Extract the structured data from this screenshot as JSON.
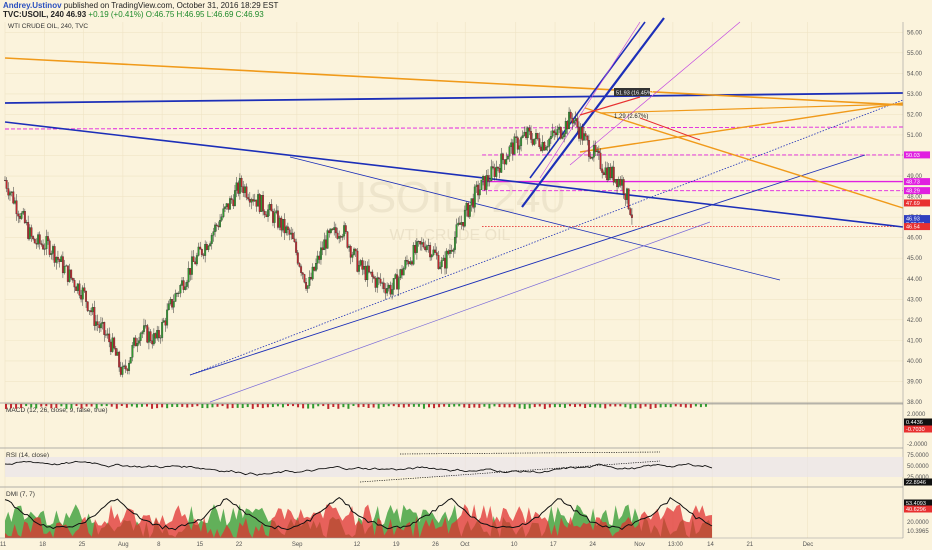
{
  "header": {
    "author": "Andrey.Ustinov",
    "published": "published on TradingView.com, October 31, 2016 18:29 EST",
    "symbol": "TVC:USOIL, 240",
    "last": "46.93",
    "change": "+0.19 (+0.41%)",
    "ohlc": "O:46.75 H:46.95 L:46.69 C:46.93"
  },
  "chart_data": {
    "type": "candlestick",
    "title": "WTI CRUDE OIL, 240, TVC",
    "watermark": {
      "symbol": "USOIL, 240",
      "name": "WTI CRUDE OIL"
    },
    "price_axis": {
      "range": [
        38.0,
        56.5
      ],
      "ticks": [
        "56.00",
        "55.00",
        "54.00",
        "53.00",
        "52.00",
        "51.00",
        "50.00",
        "49.00",
        "48.00",
        "47.00",
        "46.00",
        "45.00",
        "44.00",
        "43.00",
        "42.00",
        "41.00",
        "40.00",
        "39.00",
        "38.00"
      ]
    },
    "price_labels": [
      {
        "text": "50.03",
        "price": 50.03,
        "color": "#e020e0"
      },
      {
        "text": "48.73",
        "price": 48.73,
        "color": "#e020e0"
      },
      {
        "text": "48.29",
        "price": 48.29,
        "color": "#e020e0"
      },
      {
        "text": "47.69",
        "price": 47.69,
        "color": "#e83030"
      },
      {
        "text": "46.93",
        "price": 46.93,
        "color": "#2f3fbf"
      },
      {
        "text": "2:30:53",
        "price": 46.66,
        "color": "#2f3fbf"
      },
      {
        "text": "46.54",
        "price": 46.54,
        "color": "#e83030"
      }
    ],
    "time_axis": {
      "range_days": [
        0,
        160
      ],
      "ticks": [
        {
          "label": "11",
          "day": 0
        },
        {
          "label": "18",
          "day": 7
        },
        {
          "label": "25",
          "day": 14
        },
        {
          "label": "Aug",
          "day": 21
        },
        {
          "label": "8",
          "day": 28
        },
        {
          "label": "15",
          "day": 35
        },
        {
          "label": "22",
          "day": 42
        },
        {
          "label": "Sep",
          "day": 52
        },
        {
          "label": "12",
          "day": 63
        },
        {
          "label": "19",
          "day": 70
        },
        {
          "label": "26",
          "day": 77
        },
        {
          "label": "Oct",
          "day": 82
        },
        {
          "label": "10",
          "day": 91
        },
        {
          "label": "17",
          "day": 98
        },
        {
          "label": "24",
          "day": 105
        },
        {
          "label": "Nov",
          "day": 113
        },
        {
          "label": "13:00",
          "day": 119
        },
        {
          "label": "14",
          "day": 126
        },
        {
          "label": "21",
          "day": 133
        },
        {
          "label": "Dec",
          "day": 143
        }
      ]
    },
    "price_path": [
      {
        "day": 0,
        "price": 48.8
      },
      {
        "day": 2,
        "price": 47.6
      },
      {
        "day": 5,
        "price": 45.8
      },
      {
        "day": 8,
        "price": 45.6
      },
      {
        "day": 11,
        "price": 44.3
      },
      {
        "day": 14,
        "price": 43.3
      },
      {
        "day": 16,
        "price": 42.0
      },
      {
        "day": 19,
        "price": 40.8
      },
      {
        "day": 21,
        "price": 39.3
      },
      {
        "day": 24,
        "price": 41.5
      },
      {
        "day": 27,
        "price": 41.0
      },
      {
        "day": 30,
        "price": 43.0
      },
      {
        "day": 33,
        "price": 44.5
      },
      {
        "day": 36,
        "price": 45.8
      },
      {
        "day": 39,
        "price": 47.2
      },
      {
        "day": 42,
        "price": 48.6
      },
      {
        "day": 45,
        "price": 47.8
      },
      {
        "day": 48,
        "price": 47.0
      },
      {
        "day": 51,
        "price": 46.0
      },
      {
        "day": 54,
        "price": 43.6
      },
      {
        "day": 57,
        "price": 45.8
      },
      {
        "day": 60,
        "price": 46.5
      },
      {
        "day": 63,
        "price": 44.6
      },
      {
        "day": 66,
        "price": 43.9
      },
      {
        "day": 69,
        "price": 43.5
      },
      {
        "day": 72,
        "price": 45.0
      },
      {
        "day": 75,
        "price": 45.8
      },
      {
        "day": 78,
        "price": 44.6
      },
      {
        "day": 81,
        "price": 46.6
      },
      {
        "day": 84,
        "price": 48.2
      },
      {
        "day": 87,
        "price": 49.2
      },
      {
        "day": 90,
        "price": 50.3
      },
      {
        "day": 93,
        "price": 51.0
      },
      {
        "day": 96,
        "price": 50.6
      },
      {
        "day": 99,
        "price": 51.2
      },
      {
        "day": 101,
        "price": 51.9
      },
      {
        "day": 104,
        "price": 50.4
      },
      {
        "day": 107,
        "price": 49.3
      },
      {
        "day": 110,
        "price": 48.7
      },
      {
        "day": 112,
        "price": 46.9
      }
    ],
    "drawings": {
      "horizontal": [
        {
          "price": 50.03,
          "color": "#e020e0",
          "style": "dashed"
        },
        {
          "price": 48.73,
          "color": "#e020e0",
          "style": "solid"
        },
        {
          "price": 48.29,
          "color": "#e020e0",
          "style": "dashed"
        },
        {
          "price": 46.54,
          "color": "#e83030",
          "style": "dotted"
        }
      ],
      "annotation": "1.29 (2.67%)",
      "peak_label": "51.93 (16.45%)"
    },
    "indicators": [
      {
        "name": "macd",
        "label": "MACD (12, 26, close, 9, false, true)",
        "ticks": [
          "2.0000",
          "0.4436",
          "-0.7030",
          "-2.0000"
        ]
      },
      {
        "name": "rsi",
        "label": "RSI (14, close)",
        "ticks": [
          "75.0000",
          "50.0000",
          "25.0000",
          "22.8946"
        ]
      },
      {
        "name": "dmi",
        "label": "DMI (7, 7)",
        "ticks": [
          "53.4093",
          "40.6296",
          "20.0000",
          "10.3965"
        ]
      }
    ],
    "colors": {
      "up": "#2f9a2f",
      "down": "#c0282f",
      "blue": "#1c2fb8",
      "orange": "#f09a1a",
      "magenta": "#e020e0",
      "background": "#fbf3dc"
    }
  }
}
